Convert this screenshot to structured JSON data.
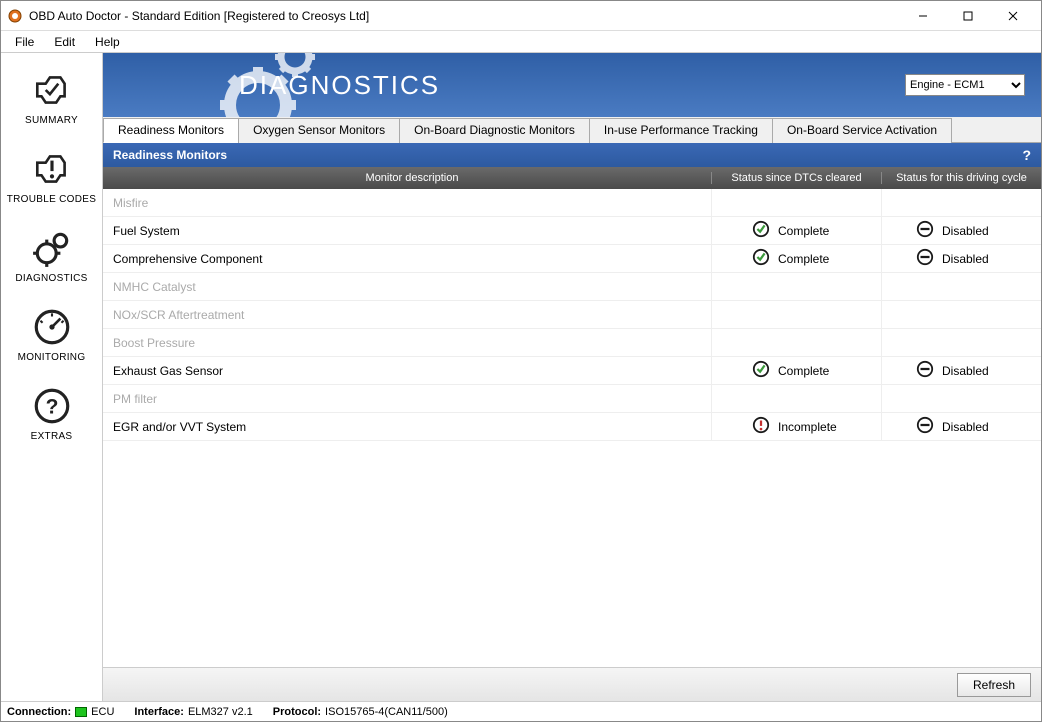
{
  "window": {
    "title": "OBD Auto Doctor - Standard Edition [Registered to Creosys Ltd]"
  },
  "menubar": [
    "File",
    "Edit",
    "Help"
  ],
  "sidebar": [
    {
      "id": "summary",
      "label": "SUMMARY"
    },
    {
      "id": "trouble-codes",
      "label": "TROUBLE CODES"
    },
    {
      "id": "diagnostics",
      "label": "DIAGNOSTICS"
    },
    {
      "id": "monitoring",
      "label": "MONITORING"
    },
    {
      "id": "extras",
      "label": "EXTRAS"
    }
  ],
  "sidebar_active": "diagnostics",
  "header": {
    "title": "DIAGNOSTICS",
    "ecu_select": "Engine - ECM1"
  },
  "tabs": [
    "Readiness Monitors",
    "Oxygen Sensor Monitors",
    "On-Board Diagnostic Monitors",
    "In-use Performance Tracking",
    "On-Board Service Activation"
  ],
  "active_tab": 0,
  "section_title": "Readiness Monitors",
  "columns": {
    "desc": "Monitor description",
    "status1": "Status since DTCs cleared",
    "status2": "Status for this driving cycle"
  },
  "status_labels": {
    "complete": "Complete",
    "incomplete": "Incomplete",
    "disabled": "Disabled"
  },
  "rows": [
    {
      "desc": "Misfire",
      "inactive": true
    },
    {
      "desc": "Fuel System",
      "s1": "complete",
      "s2": "disabled"
    },
    {
      "desc": "Comprehensive Component",
      "s1": "complete",
      "s2": "disabled"
    },
    {
      "desc": "NMHC Catalyst",
      "inactive": true
    },
    {
      "desc": "NOx/SCR Aftertreatment",
      "inactive": true
    },
    {
      "desc": "Boost Pressure",
      "inactive": true
    },
    {
      "desc": "Exhaust Gas Sensor",
      "s1": "complete",
      "s2": "disabled"
    },
    {
      "desc": "PM filter",
      "inactive": true
    },
    {
      "desc": "EGR and/or VVT System",
      "s1": "incomplete",
      "s2": "disabled"
    }
  ],
  "refresh_label": "Refresh",
  "statusbar": {
    "connection_label": "Connection:",
    "connection_value": "ECU",
    "interface_label": "Interface:",
    "interface_value": "ELM327 v2.1",
    "protocol_label": "Protocol:",
    "protocol_value": "ISO15765-4(CAN11/500)"
  },
  "colors": {
    "header_grad_top": "#2f5fa6",
    "header_grad_bot": "#4a7bc2",
    "section_grad_top": "#3a68b5",
    "section_grad_bot": "#2d5aa0",
    "gridhead_top": "#6a6a6a",
    "gridhead_bot": "#4a4a4a",
    "complete": "#3c9a3c",
    "incomplete": "#c53030",
    "disabled": "#1a1a1a",
    "led": "#1ec41e"
  }
}
